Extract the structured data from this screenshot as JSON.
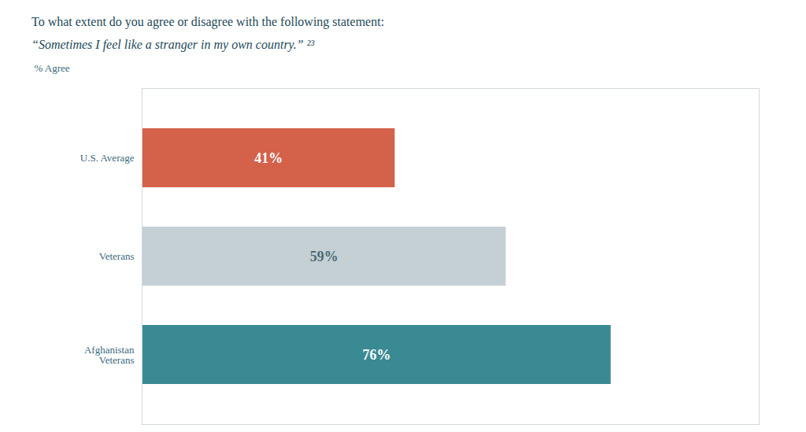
{
  "chart_data": {
    "type": "bar",
    "orientation": "horizontal",
    "title": "To what extent do you agree or disagree with the following statement:",
    "subtitle": "“Sometimes I feel like a stranger in my own country.” ²³",
    "ylabel": "% Agree",
    "categories": [
      "U.S. Average",
      "Veterans",
      "Afghanistan\nVeterans"
    ],
    "values": [
      41,
      59,
      76
    ],
    "value_labels": [
      "41%",
      "59%",
      "76%"
    ],
    "colors": [
      "#d4614a",
      "#c5d0d5",
      "#3a8a94"
    ],
    "xlim": [
      0,
      100
    ],
    "data_labels": true,
    "tick_labels": "y",
    "grid": false
  }
}
